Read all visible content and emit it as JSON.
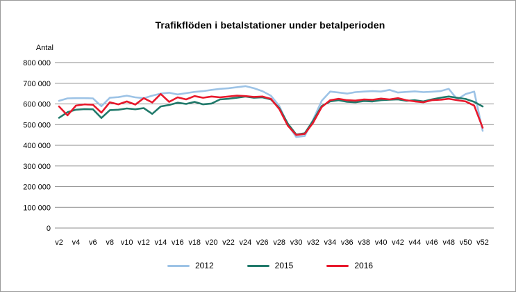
{
  "frame": {
    "title": "Trafikflöden i betalstationer under betalperioden",
    "y_axis_title": "Antal"
  },
  "chart_data": {
    "type": "line",
    "title": "Trafikflöden i betalstationer under betalperioden",
    "xlabel": "",
    "ylabel": "Antal",
    "ylim": [
      0,
      800000
    ],
    "grid": true,
    "legend_position": "bottom",
    "y_tick_values": [
      0,
      100000,
      200000,
      300000,
      400000,
      500000,
      600000,
      700000,
      800000
    ],
    "y_tick_labels": [
      "0",
      "100 000",
      "200 000",
      "300 000",
      "400 000",
      "500 000",
      "600 000",
      "700 000",
      "800 000"
    ],
    "x_weeks": [
      2,
      3,
      4,
      5,
      6,
      7,
      8,
      9,
      10,
      11,
      12,
      13,
      14,
      15,
      16,
      17,
      18,
      19,
      20,
      21,
      22,
      23,
      24,
      25,
      26,
      27,
      28,
      29,
      30,
      31,
      32,
      33,
      34,
      35,
      36,
      37,
      38,
      39,
      40,
      41,
      42,
      43,
      44,
      45,
      46,
      47,
      48,
      49,
      50,
      51,
      52
    ],
    "x_tick_weeks": [
      2,
      4,
      6,
      8,
      10,
      12,
      14,
      16,
      18,
      20,
      22,
      24,
      26,
      28,
      30,
      32,
      34,
      36,
      38,
      40,
      42,
      44,
      46,
      48,
      50,
      52
    ],
    "x_tick_labels": [
      "v2",
      "v4",
      "v6",
      "v8",
      "v10",
      "v12",
      "v14",
      "v16",
      "v18",
      "v20",
      "v22",
      "v24",
      "v26",
      "v28",
      "v30",
      "v32",
      "v34",
      "v36",
      "v38",
      "v40",
      "v42",
      "v44",
      "v46",
      "v48",
      "v50",
      "v52"
    ],
    "grid_color": "#8c8c8c",
    "series": [
      {
        "name": "2012",
        "color": "#9dc3e6",
        "values": [
          615000,
          627000,
          628000,
          628000,
          627000,
          589000,
          630000,
          633000,
          640000,
          632000,
          628000,
          640000,
          650000,
          654000,
          646000,
          652000,
          658000,
          662000,
          668000,
          673000,
          676000,
          681000,
          686000,
          676000,
          662000,
          640000,
          590000,
          500000,
          440000,
          445000,
          525000,
          615000,
          660000,
          655000,
          650000,
          657000,
          660000,
          662000,
          660000,
          668000,
          655000,
          658000,
          661000,
          657000,
          659000,
          662000,
          673000,
          622000,
          648000,
          660000,
          470000
        ]
      },
      {
        "name": "2015",
        "color": "#217a6b",
        "values": [
          533000,
          560000,
          572000,
          575000,
          574000,
          532000,
          570000,
          572000,
          578000,
          574000,
          580000,
          552000,
          588000,
          595000,
          606000,
          600000,
          610000,
          598000,
          602000,
          622000,
          625000,
          630000,
          636000,
          630000,
          632000,
          622000,
          580000,
          505000,
          452000,
          458000,
          520000,
          590000,
          612000,
          618000,
          610000,
          608000,
          614000,
          612000,
          618000,
          620000,
          622000,
          615000,
          618000,
          612000,
          622000,
          630000,
          636000,
          630000,
          624000,
          610000,
          588000
        ]
      },
      {
        "name": "2016",
        "color": "#e8192c",
        "values": [
          588000,
          545000,
          592000,
          598000,
          596000,
          558000,
          608000,
          598000,
          612000,
          597000,
          628000,
          607000,
          648000,
          610000,
          632000,
          622000,
          638000,
          630000,
          636000,
          632000,
          636000,
          640000,
          638000,
          634000,
          636000,
          625000,
          575000,
          495000,
          450000,
          455000,
          510000,
          585000,
          618000,
          625000,
          618000,
          616000,
          622000,
          620000,
          626000,
          622000,
          628000,
          618000,
          612000,
          608000,
          618000,
          620000,
          625000,
          618000,
          612000,
          592000,
          485000
        ]
      }
    ]
  }
}
